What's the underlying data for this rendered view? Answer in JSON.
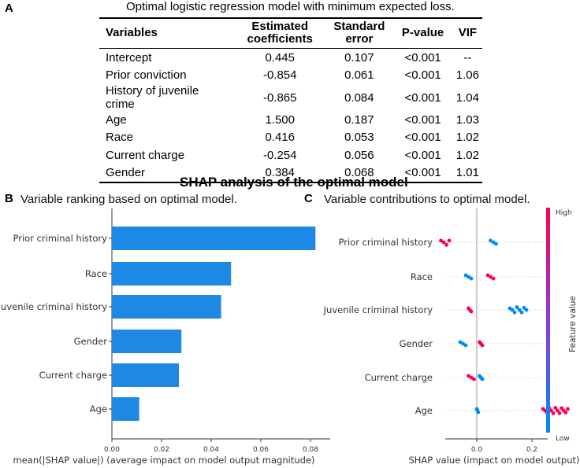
{
  "panel_a": {
    "letter": "A",
    "title": "Optimal logistic regression model with minimum expected loss.",
    "headers": [
      {
        "line1": "Variables",
        "line2": ""
      },
      {
        "line1": "Estimated",
        "line2": "coefficients"
      },
      {
        "line1": "Standard",
        "line2": "error"
      },
      {
        "line1": "P-value",
        "line2": ""
      },
      {
        "line1": "VIF",
        "line2": ""
      }
    ],
    "rows": [
      [
        "Intercept",
        "0.445",
        "0.107",
        "<0.001",
        "--"
      ],
      [
        "Prior conviction",
        "-0.854",
        "0.061",
        "<0.001",
        "1.06"
      ],
      [
        "History of juvenile crime",
        "-0.865",
        "0.084",
        "<0.001",
        "1.04"
      ],
      [
        "Age",
        "1.500",
        "0.187",
        "<0.001",
        "1.03"
      ],
      [
        "Race",
        "0.416",
        "0.053",
        "<0.001",
        "1.02"
      ],
      [
        "Current charge",
        "-0.254",
        "0.056",
        "<0.001",
        "1.02"
      ],
      [
        "Gender",
        "0.384",
        "0.068",
        "<0.001",
        "1.01"
      ]
    ]
  },
  "shap_title": "SHAP analysis of the optimal model",
  "panel_b": {
    "letter": "B",
    "caption": "Variable ranking based on optimal model."
  },
  "panel_c": {
    "letter": "C",
    "caption": "Variable contributions to optimal model."
  },
  "chart_data": [
    {
      "type": "bar",
      "orientation": "horizontal",
      "categories": [
        "Prior criminal history",
        "Race",
        "Juvenile criminal history",
        "Gender",
        "Current charge",
        "Age"
      ],
      "values": [
        0.082,
        0.048,
        0.044,
        0.028,
        0.027,
        0.011
      ],
      "xlabel": "mean(|SHAP value|) (average impact on model output magnitude)",
      "xlim": [
        0,
        0.088
      ],
      "xticks": [
        "0.00",
        "0.02",
        "0.04",
        "0.06",
        "0.08"
      ],
      "xtick_values": [
        0,
        0.02,
        0.04,
        0.06,
        0.08
      ],
      "bar_color": "#1e88e5"
    },
    {
      "type": "scatter",
      "subtype": "beeswarm",
      "categories": [
        "Prior criminal history",
        "Race",
        "Juvenile criminal history",
        "Gender",
        "Current charge",
        "Age"
      ],
      "xlabel": "SHAP value (impact on model output)",
      "xlim": [
        -0.12,
        0.36
      ],
      "xticks": [
        "0.0",
        "0.2"
      ],
      "xtick_values": [
        0,
        0.2
      ],
      "colorbar": {
        "label": "Feature value",
        "high": "High",
        "low": "Low",
        "high_color": "#ff0052",
        "low_color": "#008bfb"
      },
      "clusters": [
        {
          "feature": "Prior criminal history",
          "level": "high",
          "from": -0.13,
          "to": -0.1
        },
        {
          "feature": "Prior criminal history",
          "level": "low",
          "from": 0.05,
          "to": 0.07
        },
        {
          "feature": "Race",
          "level": "low",
          "from": -0.04,
          "to": -0.02
        },
        {
          "feature": "Race",
          "level": "high",
          "from": 0.04,
          "to": 0.06
        },
        {
          "feature": "Juvenile criminal history",
          "level": "high",
          "from": -0.03,
          "to": -0.02
        },
        {
          "feature": "Juvenile criminal history",
          "level": "low",
          "from": 0.12,
          "to": 0.18
        },
        {
          "feature": "Gender",
          "level": "low",
          "from": -0.06,
          "to": -0.04
        },
        {
          "feature": "Gender",
          "level": "high",
          "from": 0.01,
          "to": 0.02
        },
        {
          "feature": "Current charge",
          "level": "high",
          "from": -0.03,
          "to": -0.01
        },
        {
          "feature": "Current charge",
          "level": "low",
          "from": 0.01,
          "to": 0.02
        },
        {
          "feature": "Age",
          "level": "low",
          "from": 0.0,
          "to": 0.005
        },
        {
          "feature": "Age",
          "level": "high",
          "from": 0.24,
          "to": 0.33
        }
      ]
    }
  ]
}
